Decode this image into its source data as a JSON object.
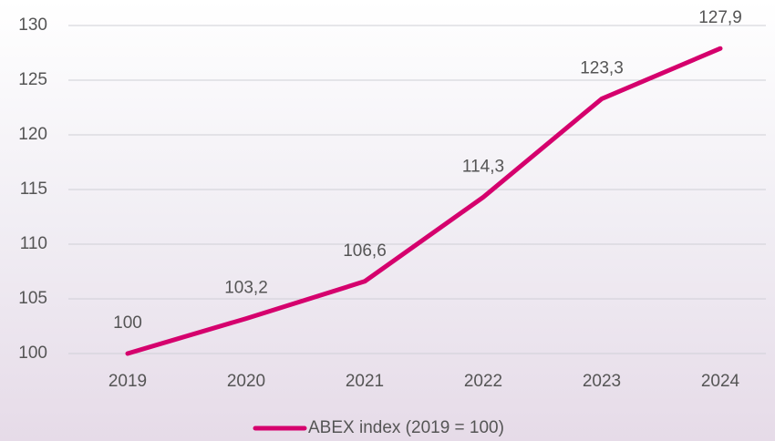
{
  "chart_data": {
    "type": "line",
    "categories": [
      "2019",
      "2020",
      "2021",
      "2022",
      "2023",
      "2024"
    ],
    "series": [
      {
        "name": "ABEX index (2019 = 100)",
        "color": "#d5006d",
        "values": [
          100,
          103.2,
          106.6,
          114.3,
          123.3,
          127.9
        ],
        "value_labels": [
          "100",
          "103,2",
          "106,6",
          "114,3",
          "123,3",
          "127,9"
        ]
      }
    ],
    "ylim": [
      100,
      130
    ],
    "yticks": [
      100,
      105,
      110,
      115,
      120,
      125,
      130
    ],
    "grid": true,
    "legend": "bottom"
  }
}
